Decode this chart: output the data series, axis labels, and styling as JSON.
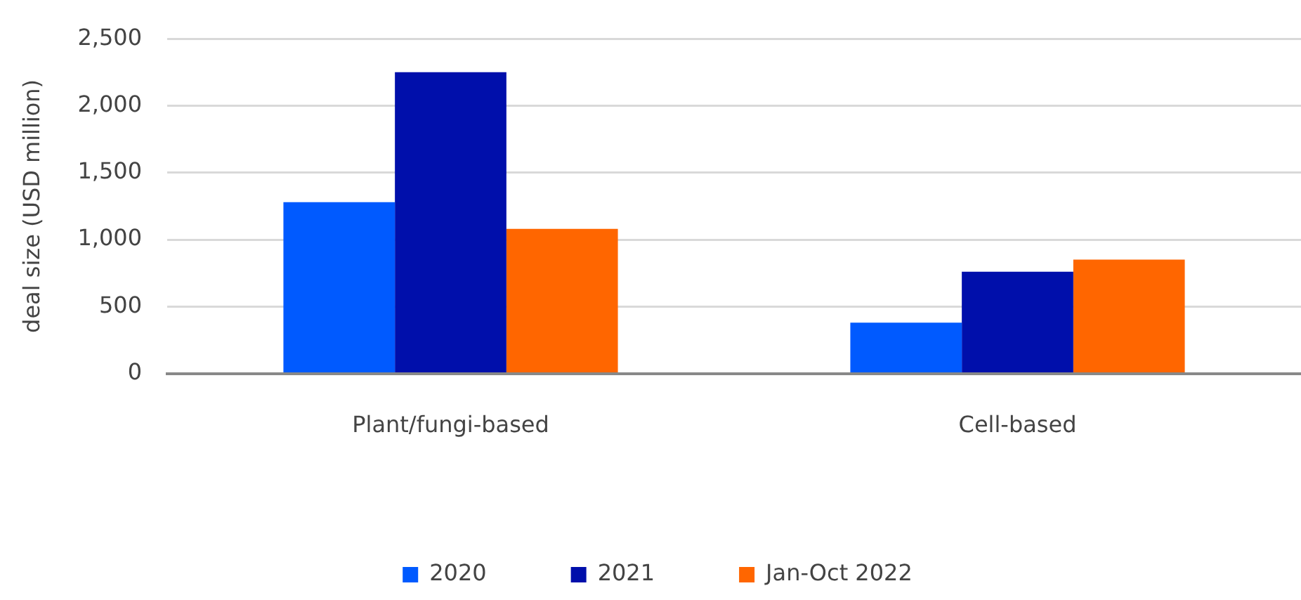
{
  "chart_data": {
    "type": "bar",
    "ylabel": "deal size (USD million)",
    "categories": [
      "Plant/fungi-based",
      "Cell-based"
    ],
    "series": [
      {
        "name": "2020",
        "color": "#005aff",
        "values": [
          1280,
          380
        ]
      },
      {
        "name": "2021",
        "color": "#000fab",
        "values": [
          2250,
          760
        ]
      },
      {
        "name": "Jan-Oct 2022",
        "color": "#ff6600",
        "values": [
          1080,
          850
        ]
      }
    ],
    "ylim": [
      0,
      2500
    ],
    "yticks": [
      0,
      500,
      {
        "value": 1000,
        "label": "1,000"
      },
      {
        "value": 1500,
        "label": "1,500"
      },
      {
        "value": 2000,
        "label": "2,000"
      },
      {
        "value": 2500,
        "label": "2,500"
      }
    ],
    "grid": "y",
    "legend": "bottom"
  }
}
